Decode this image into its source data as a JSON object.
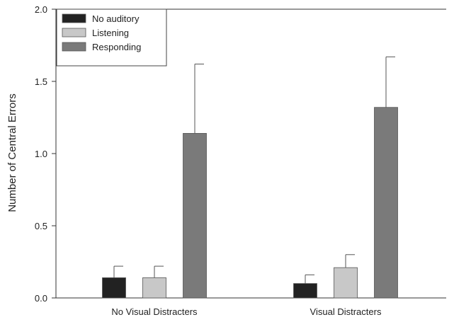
{
  "chart_data": {
    "type": "bar",
    "title": "",
    "xlabel": "",
    "ylabel": "Number of Central Errors",
    "ylim": [
      0,
      2.0
    ],
    "yticks": [
      {
        "value": 0.0,
        "label": "0.0"
      },
      {
        "value": 0.5,
        "label": "0.5"
      },
      {
        "value": 1.0,
        "label": "1.0"
      },
      {
        "value": 1.5,
        "label": "1.5"
      },
      {
        "value": 2.0,
        "label": "2.0"
      }
    ],
    "categories": [
      "No Visual Distracters",
      "Visual Distracters"
    ],
    "series": [
      {
        "name": "No auditory",
        "color": "#222222",
        "values": [
          0.14,
          0.1
        ],
        "errors": [
          0.08,
          0.06
        ]
      },
      {
        "name": "Listening",
        "color": "#c8c8c8",
        "values": [
          0.14,
          0.21
        ],
        "errors": [
          0.08,
          0.09
        ]
      },
      {
        "name": "Responding",
        "color": "#7a7a7a",
        "values": [
          1.14,
          1.32
        ],
        "errors": [
          0.48,
          0.35
        ]
      }
    ],
    "legend_position": "top-left",
    "grid": false
  }
}
